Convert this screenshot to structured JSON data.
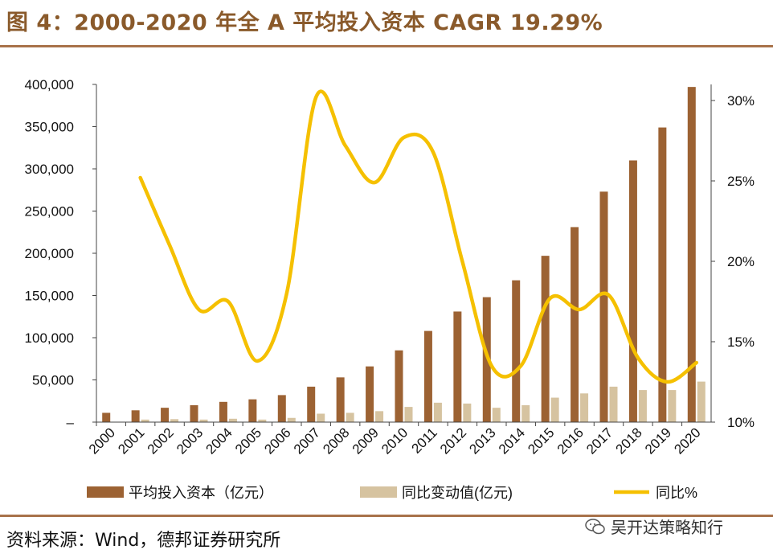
{
  "header": {
    "title": "图 4：2000-2020 年全 A 平均投入资本 CAGR 19.29%"
  },
  "footer": {
    "source": "资料来源：Wind，德邦证券研究所",
    "watermark": "吴开达策略知行"
  },
  "colors": {
    "bar_primary": "#9c6233",
    "bar_secondary": "#d6c3a0",
    "line": "#f5c000",
    "rule": "#a8724a",
    "title": "#8a5a2b"
  },
  "chart_data": {
    "type": "bar+line",
    "title": "2000-2020 年全 A 平均投入资本 CAGR 19.29%",
    "categories": [
      "2000",
      "2001",
      "2002",
      "2003",
      "2004",
      "2005",
      "2006",
      "2007",
      "2008",
      "2009",
      "2010",
      "2011",
      "2012",
      "2013",
      "2014",
      "2015",
      "2016",
      "2017",
      "2018",
      "2019",
      "2020"
    ],
    "left_axis": {
      "ylim": [
        0,
        400000
      ],
      "ticks": [
        "–",
        "50,000",
        "100,000",
        "150,000",
        "200,000",
        "250,000",
        "300,000",
        "350,000",
        "400,000"
      ]
    },
    "right_axis": {
      "ylim": [
        0.1,
        0.31
      ],
      "ticks": [
        "10%",
        "15%",
        "20%",
        "25%",
        "30%"
      ],
      "tick_values": [
        0.1,
        0.15,
        0.2,
        0.25,
        0.3
      ]
    },
    "series": [
      {
        "name": "平均投入资本（亿元）",
        "type": "bar",
        "axis": "left",
        "values": [
          11000,
          14000,
          17000,
          20000,
          24000,
          27000,
          32000,
          42000,
          53000,
          66000,
          85000,
          108000,
          131000,
          148000,
          168000,
          197000,
          231000,
          273000,
          310000,
          349000,
          397000
        ]
      },
      {
        "name": "同比变动值(亿元)",
        "type": "bar",
        "axis": "left",
        "values": [
          null,
          3000,
          3500,
          3000,
          4000,
          3000,
          5000,
          10000,
          11000,
          13000,
          18000,
          23000,
          22000,
          17000,
          20000,
          29000,
          34000,
          42000,
          38000,
          38000,
          48000
        ]
      },
      {
        "name": "同比%",
        "type": "line",
        "axis": "right",
        "values": [
          null,
          0.252,
          0.21,
          0.17,
          0.175,
          0.138,
          0.18,
          0.302,
          0.272,
          0.249,
          0.277,
          0.268,
          0.2,
          0.135,
          0.135,
          0.177,
          0.17,
          0.179,
          0.14,
          0.125,
          0.137
        ]
      }
    ],
    "legend": [
      "平均投入资本（亿元）",
      "同比变动值(亿元)",
      "同比%"
    ],
    "legend_position": "bottom"
  }
}
